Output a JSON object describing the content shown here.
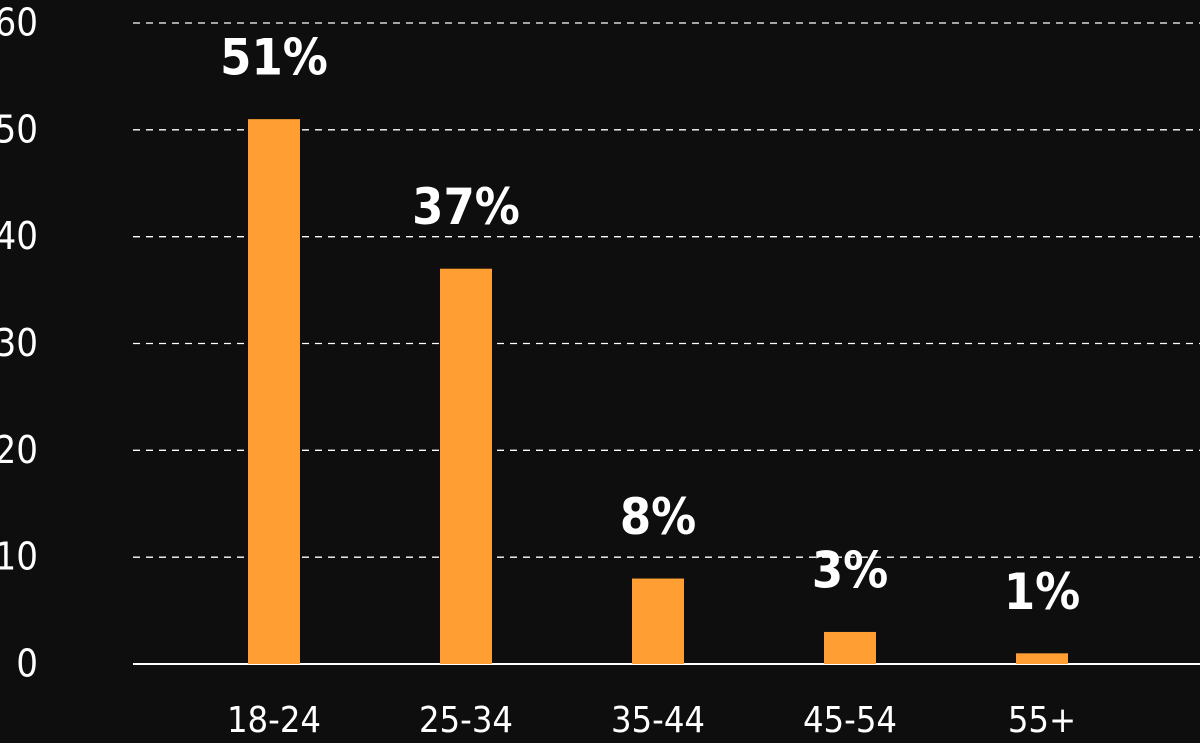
{
  "chart_data": {
    "type": "bar",
    "categories": [
      "18-24",
      "25-34",
      "35-44",
      "45-54",
      "55+"
    ],
    "values": [
      51,
      37,
      8,
      3,
      1
    ],
    "value_labels": [
      "51%",
      "37%",
      "8%",
      "3%",
      "1%"
    ],
    "color": "#ff9f33",
    "ylim": [
      0,
      60
    ],
    "yticks": [
      0,
      10,
      20,
      30,
      40,
      50,
      60
    ],
    "grid": true
  }
}
